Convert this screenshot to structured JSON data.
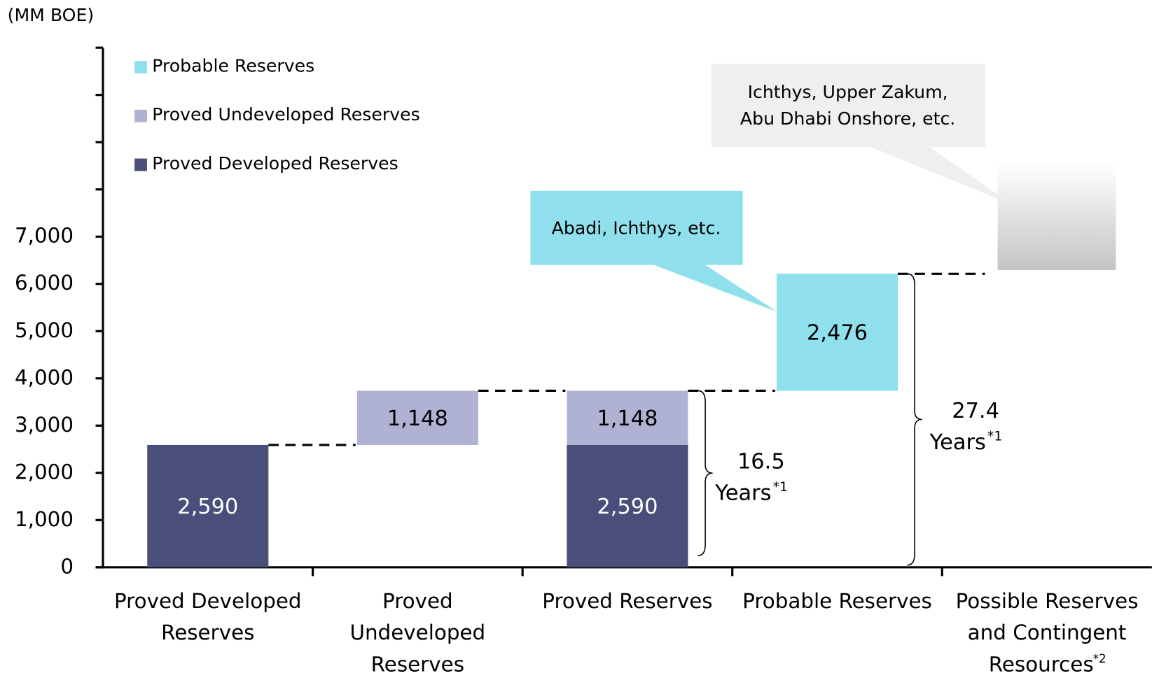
{
  "chart_data": {
    "type": "waterfall",
    "unit_label": "(MM BOE)",
    "categories": [
      "Proved Developed\nReserves",
      "Proved\nUndeveloped\nReserves",
      "Proved Reserves",
      "Probable Reserves",
      "Possible Reserves\nand Contingent\nResources"
    ],
    "category_notes": [
      null,
      null,
      null,
      null,
      "*2"
    ],
    "series": [
      {
        "name": "Proved Developed Reserves",
        "color": "#4a4e7a",
        "text_color": "#ffffff",
        "values": [
          2590,
          null,
          2590,
          null,
          null
        ],
        "value_labels": [
          "2,590",
          null,
          "2,590",
          null,
          null
        ]
      },
      {
        "name": "Proved Undeveloped Reserves",
        "color": "#b0b2d4",
        "text_color": "#000000",
        "values": [
          null,
          1148,
          1148,
          null,
          null
        ],
        "value_labels": [
          null,
          "1,148",
          "1,148",
          null,
          null
        ]
      },
      {
        "name": "Probable Reserves",
        "color": "#8fdfed",
        "text_color": "#000000",
        "values": [
          null,
          null,
          null,
          2476,
          null
        ],
        "value_labels": [
          null,
          null,
          null,
          "2,476",
          null
        ]
      }
    ],
    "ylim": [
      0,
      11000
    ],
    "yticks": [
      0,
      {
        "value": 1000,
        "label": "1,000"
      },
      {
        "value": 2000,
        "label": "2,000"
      },
      {
        "value": 3000,
        "label": "3,000"
      },
      {
        "value": 4000,
        "label": "4,000"
      },
      {
        "value": 5000,
        "label": "5,000"
      },
      {
        "value": 6000,
        "label": "6,000"
      },
      {
        "value": 7000,
        "label": "7,000"
      }
    ],
    "minor_yticks": [
      8000,
      9000,
      10000,
      11000
    ],
    "callouts": [
      {
        "text": "Abadi, Ichthys, etc."
      },
      {
        "text": "Ichthys, Upper Zakum,\nAbu Dhabi Onshore, etc."
      }
    ],
    "braces": [
      {
        "label": "16.5",
        "unit": "Years",
        "note": "*1"
      },
      {
        "label": "27.4",
        "unit": "Years",
        "note": "*1"
      }
    ]
  }
}
